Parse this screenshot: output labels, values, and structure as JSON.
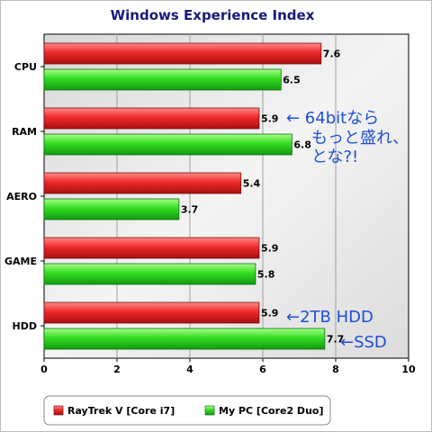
{
  "chart_data": {
    "type": "bar",
    "orientation": "horizontal",
    "title": "Windows Experience Index",
    "categories": [
      "CPU",
      "RAM",
      "AERO",
      "GAME",
      "HDD"
    ],
    "series": [
      {
        "name": "RayTrek V [Core i7]",
        "color": "#e02020",
        "values": [
          7.6,
          5.9,
          5.4,
          5.9,
          5.9
        ]
      },
      {
        "name": "My PC [Core2 Duo]",
        "color": "#22cc22",
        "values": [
          6.5,
          6.8,
          3.7,
          5.8,
          7.7
        ]
      }
    ],
    "xlim": [
      0,
      10
    ],
    "xticks": [
      "0",
      "2",
      "4",
      "6",
      "8",
      "10"
    ],
    "grid": true,
    "legend": "bottom-left",
    "annotations": [
      {
        "lines": [
          "← 64bitなら",
          "もっと盛れ、",
          "とな?!"
        ]
      },
      {
        "lines": [
          "←2TB HDD"
        ]
      },
      {
        "lines": [
          "←SSD"
        ]
      }
    ]
  }
}
